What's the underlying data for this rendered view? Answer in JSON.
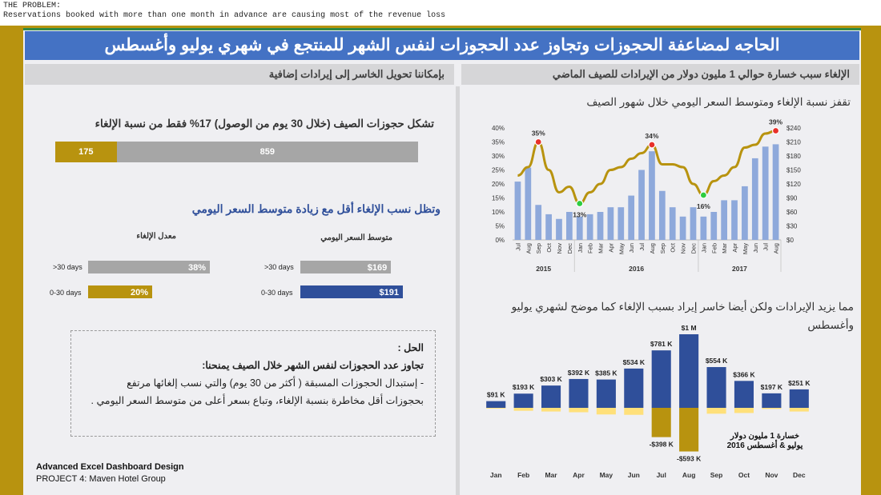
{
  "header_note": {
    "line1": "THE PROBLEM:",
    "line2": "Reservations booked with more than one month in advance are causing most of the revenue loss"
  },
  "banner_title": "الحاجه لمضاعفة الحجوزات وتجاوز عدد الحجوزات لنفس الشهر للمنتجع في شهري يوليو وأغسطس",
  "right_sub": "الإلغاء سبب خسارة  حوالي 1 مليون دولار من الإيرادات للصيف الماضي",
  "left_sub": "بإمكاننا تحويل الخاسر إلى إيرادات إضافية",
  "left": {
    "share_title": "تشكل حجوزات الصيف (خلال 30 يوم من الوصول) 17% فقط من نسبة الإلغاء",
    "share_bar": {
      "part": 175,
      "rest": 859,
      "part_label": "175",
      "rest_label": "859"
    },
    "trend_title": "وتظل نسب الإلغاء أقل مع زيادة متوسط السعر اليومي",
    "cancel_label": "معدل الإلغاء",
    "adr_label": "متوسط السعر اليومي",
    "rows": [
      {
        "label": ">30 days",
        "cancel_pct": 38,
        "cancel_text": "38%",
        "adr": 169,
        "adr_text": "$169"
      },
      {
        "label": "0-30 days",
        "cancel_pct": 20,
        "cancel_text": "20%",
        "adr": 191,
        "adr_text": "$191"
      }
    ],
    "solution": {
      "heading": "الحل :",
      "subheading": "تجاوز عدد الحجوزات لنفس الشهر خلال الصيف يمنحنا:",
      "line1": "- إستبدال الحجوزات المسبقة ( أكثر من 30 يوم)   والتي نسب إلغائها مرتفع",
      "line2": "بحجوزات أقل مخاطرة بنسبة الإلغاء، وتباع بسعر أعلى من متوسط السعر اليومي ."
    },
    "footer1": "Advanced Excel Dashboard Design",
    "footer2": "PROJECT 4: Maven Hotel Group"
  },
  "chart1_title": "تقفز نسبة الإلغاء ومتوسط السعر اليومي خلال شهور الصيف",
  "chart2_title": "مما يزيد الإيرادات ولكن أيضا خاسر إيراد بسبب الإلغاء كما موضح لشهري يوليو وأغسطس",
  "chart_data": [
    {
      "type": "bar+line",
      "title": "تقفز نسبة الإلغاء ومتوسط السعر اليومي خلال شهور الصيف",
      "categories": [
        "Jul",
        "Aug",
        "Sep",
        "Oct",
        "Nov",
        "Dec",
        "Jan",
        "Feb",
        "Mar",
        "Apr",
        "May",
        "Jun",
        "Jul",
        "Aug",
        "Sep",
        "Oct",
        "Nov",
        "Dec",
        "Jan",
        "Feb",
        "Mar",
        "Apr",
        "May",
        "Jun",
        "Jul",
        "Aug"
      ],
      "year_labels": [
        {
          "label": "2015",
          "start": 0,
          "end": 5
        },
        {
          "label": "2016",
          "start": 6,
          "end": 17
        },
        {
          "label": "2017",
          "start": 18,
          "end": 25
        }
      ],
      "series": [
        {
          "name": "",
          "kind": "bar",
          "axis": "right",
          "color": "#8ea9db",
          "values": [
            125,
            155,
            75,
            55,
            45,
            60,
            50,
            55,
            60,
            70,
            70,
            95,
            150,
            190,
            105,
            70,
            50,
            70,
            50,
            60,
            85,
            85,
            115,
            175,
            200,
            205
          ]
        },
        {
          "name": "",
          "kind": "line",
          "axis": "left",
          "color": "#b8930f",
          "values": [
            23,
            26,
            35,
            25,
            17,
            19,
            13,
            17,
            20,
            25,
            26,
            29,
            31,
            34,
            27,
            27,
            26,
            20,
            16,
            21,
            23,
            26,
            33,
            34,
            38,
            39
          ]
        }
      ],
      "highlights": [
        {
          "index": 2,
          "label": "35%",
          "color": "#e8302a"
        },
        {
          "index": 6,
          "label": "13%",
          "color": "#2ecc40"
        },
        {
          "index": 13,
          "label": "34%",
          "color": "#e8302a"
        },
        {
          "index": 18,
          "label": "16%",
          "color": "#2ecc40"
        },
        {
          "index": 25,
          "label": "39%",
          "color": "#e8302a"
        }
      ],
      "left_axis": {
        "ticks": [
          "0%",
          "5%",
          "10%",
          "15%",
          "20%",
          "25%",
          "30%",
          "35%",
          "40%"
        ],
        "range": [
          0,
          40
        ]
      },
      "right_axis": {
        "ticks": [
          "$0",
          "$30",
          "$60",
          "$90",
          "$120",
          "$150",
          "$180",
          "$210",
          "$240"
        ],
        "range": [
          0,
          240
        ]
      }
    },
    {
      "type": "bar",
      "title": "مما يزيد الإيرادات ولكن أيضا خاسر إيراد بسبب الإلغاء كما موضح لشهري يوليو وأغسطس",
      "categories": [
        "Jan",
        "Feb",
        "Mar",
        "Apr",
        "May",
        "Jun",
        "Jul",
        "Aug",
        "Sep",
        "Oct",
        "Nov",
        "Dec"
      ],
      "series": [
        {
          "name": "",
          "color": "#2f4f9a",
          "values": [
            91,
            193,
            303,
            392,
            385,
            534,
            781,
            1000,
            554,
            366,
            197,
            251
          ],
          "labels": [
            "$91 K",
            "$193 K",
            "$303 K",
            "$392 K",
            "$385 K",
            "$534 K",
            "$781 K",
            "$1 M",
            "$554 K",
            "$366 K",
            "$197 K",
            "$251 K"
          ]
        },
        {
          "name": "",
          "color": "#ffe07a",
          "highlight_color": "#b8930f",
          "values": [
            -10,
            -40,
            -50,
            -60,
            -90,
            -95,
            -398,
            -593,
            -80,
            -70,
            -15,
            -50
          ],
          "labels": [
            "",
            "",
            "",
            "",
            "",
            "",
            "-$398 K",
            "-$593 K",
            "",
            "",
            "",
            ""
          ]
        }
      ],
      "annotation": {
        "line1": "خسارة 1 مليون دولار",
        "line2": "يوليو & أغسطس 2016"
      }
    }
  ]
}
